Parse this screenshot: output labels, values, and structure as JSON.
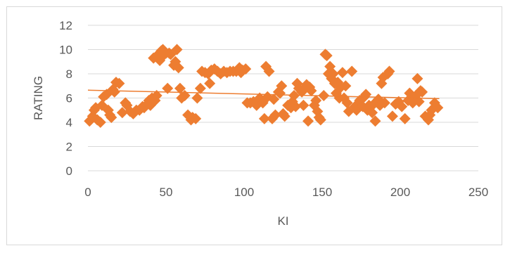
{
  "chart_data": {
    "type": "scatter",
    "title": "",
    "xlabel": "KI",
    "ylabel": "RATING",
    "xlim": [
      0,
      250
    ],
    "ylim": [
      0,
      12
    ],
    "x_ticks": [
      0,
      50,
      100,
      150,
      200,
      250
    ],
    "y_ticks": [
      0,
      2,
      4,
      6,
      8,
      10,
      12
    ],
    "grid": "horizontal",
    "legend": "none",
    "colors": {
      "marker": "#ED7D31",
      "trendline": "#ED7D31",
      "grid": "#d9d9d9",
      "text": "#595959"
    },
    "trendline": {
      "type": "linear",
      "x": [
        0,
        225
      ],
      "y": [
        6.65,
        5.95
      ]
    },
    "points": [
      [
        1,
        4.1
      ],
      [
        3,
        4.5
      ],
      [
        4,
        5.0
      ],
      [
        5,
        5.2
      ],
      [
        6,
        4.2
      ],
      [
        8,
        4.0
      ],
      [
        9,
        5.4
      ],
      [
        10,
        6.1
      ],
      [
        12,
        6.3
      ],
      [
        13,
        5.0
      ],
      [
        14,
        4.6
      ],
      [
        15,
        4.4
      ],
      [
        16,
        6.7
      ],
      [
        17,
        6.5
      ],
      [
        18,
        7.3
      ],
      [
        20,
        7.2
      ],
      [
        22,
        4.8
      ],
      [
        24,
        5.6
      ],
      [
        25,
        5.4
      ],
      [
        27,
        4.9
      ],
      [
        29,
        4.7
      ],
      [
        31,
        5.0
      ],
      [
        33,
        5.0
      ],
      [
        35,
        5.3
      ],
      [
        36,
        5.2
      ],
      [
        38,
        5.5
      ],
      [
        39,
        5.8
      ],
      [
        40,
        5.4
      ],
      [
        41,
        6.0
      ],
      [
        42,
        9.3
      ],
      [
        43,
        5.8
      ],
      [
        44,
        6.2
      ],
      [
        45,
        9.6
      ],
      [
        46,
        9.1
      ],
      [
        47,
        9.9
      ],
      [
        48,
        10.0
      ],
      [
        49,
        9.6
      ],
      [
        50,
        9.7
      ],
      [
        51,
        6.8
      ],
      [
        52,
        9.7
      ],
      [
        53,
        9.6
      ],
      [
        55,
        8.7
      ],
      [
        56,
        9.0
      ],
      [
        57,
        10.0
      ],
      [
        58,
        8.5
      ],
      [
        59,
        6.8
      ],
      [
        60,
        6.0
      ],
      [
        62,
        6.2
      ],
      [
        64,
        4.6
      ],
      [
        66,
        4.2
      ],
      [
        67,
        4.4
      ],
      [
        69,
        4.3
      ],
      [
        70,
        6.0
      ],
      [
        72,
        6.8
      ],
      [
        73,
        8.2
      ],
      [
        75,
        8.1
      ],
      [
        77,
        8.0
      ],
      [
        78,
        7.2
      ],
      [
        79,
        8.3
      ],
      [
        81,
        8.4
      ],
      [
        83,
        8.2
      ],
      [
        85,
        8.0
      ],
      [
        87,
        8.2
      ],
      [
        89,
        8.1
      ],
      [
        91,
        8.2
      ],
      [
        93,
        8.2
      ],
      [
        95,
        8.2
      ],
      [
        97,
        8.5
      ],
      [
        98,
        8.1
      ],
      [
        99,
        8.3
      ],
      [
        101,
        8.4
      ],
      [
        102,
        5.6
      ],
      [
        104,
        5.6
      ],
      [
        106,
        5.7
      ],
      [
        108,
        5.4
      ],
      [
        110,
        6.0
      ],
      [
        112,
        5.6
      ],
      [
        113,
        4.3
      ],
      [
        114,
        8.6
      ],
      [
        115,
        6.1
      ],
      [
        116,
        8.2
      ],
      [
        118,
        4.3
      ],
      [
        119,
        5.9
      ],
      [
        120,
        4.6
      ],
      [
        122,
        6.5
      ],
      [
        123,
        6.4
      ],
      [
        124,
        7.0
      ],
      [
        125,
        4.7
      ],
      [
        126,
        4.5
      ],
      [
        128,
        5.4
      ],
      [
        130,
        5.2
      ],
      [
        131,
        5.7
      ],
      [
        132,
        6.2
      ],
      [
        133,
        5.3
      ],
      [
        134,
        7.2
      ],
      [
        135,
        6.8
      ],
      [
        137,
        6.5
      ],
      [
        138,
        5.4
      ],
      [
        139,
        6.9
      ],
      [
        140,
        7.1
      ],
      [
        141,
        4.1
      ],
      [
        142,
        6.9
      ],
      [
        143,
        6.6
      ],
      [
        145,
        5.4
      ],
      [
        146,
        5.8
      ],
      [
        147,
        4.9
      ],
      [
        148,
        4.4
      ],
      [
        149,
        4.2
      ],
      [
        151,
        6.2
      ],
      [
        152,
        9.6
      ],
      [
        153,
        9.5
      ],
      [
        154,
        8.0
      ],
      [
        155,
        8.6
      ],
      [
        156,
        7.6
      ],
      [
        157,
        8.0
      ],
      [
        158,
        7.2
      ],
      [
        159,
        6.4
      ],
      [
        160,
        7.3
      ],
      [
        161,
        6.0
      ],
      [
        162,
        6.9
      ],
      [
        163,
        8.1
      ],
      [
        164,
        6.0
      ],
      [
        165,
        7.0
      ],
      [
        166,
        5.6
      ],
      [
        167,
        4.9
      ],
      [
        169,
        8.2
      ],
      [
        171,
        5.3
      ],
      [
        172,
        5.0
      ],
      [
        174,
        5.8
      ],
      [
        176,
        5.3
      ],
      [
        177,
        6.1
      ],
      [
        178,
        6.3
      ],
      [
        179,
        5.0
      ],
      [
        180,
        5.4
      ],
      [
        182,
        4.8
      ],
      [
        183,
        5.5
      ],
      [
        184,
        4.1
      ],
      [
        186,
        5.9
      ],
      [
        187,
        5.4
      ],
      [
        188,
        7.2
      ],
      [
        189,
        7.7
      ],
      [
        190,
        5.6
      ],
      [
        192,
        8.0
      ],
      [
        193,
        8.2
      ],
      [
        195,
        4.5
      ],
      [
        197,
        5.5
      ],
      [
        199,
        5.7
      ],
      [
        201,
        5.3
      ],
      [
        203,
        4.3
      ],
      [
        205,
        5.8
      ],
      [
        206,
        6.4
      ],
      [
        208,
        5.6
      ],
      [
        209,
        6.0
      ],
      [
        210,
        6.2
      ],
      [
        211,
        7.6
      ],
      [
        212,
        5.7
      ],
      [
        213,
        6.6
      ],
      [
        214,
        6.5
      ],
      [
        216,
        4.5
      ],
      [
        218,
        4.2
      ],
      [
        219,
        4.6
      ],
      [
        220,
        5.0
      ],
      [
        222,
        5.6
      ],
      [
        224,
        5.2
      ]
    ]
  }
}
